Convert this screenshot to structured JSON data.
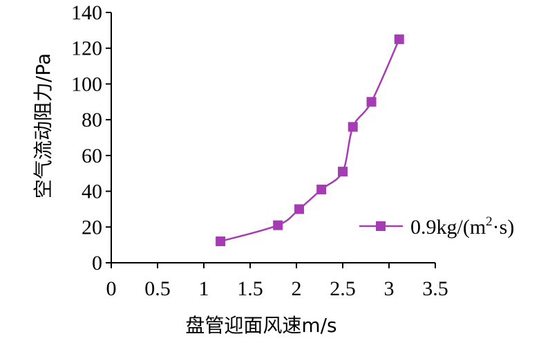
{
  "chart_data": {
    "type": "line",
    "title": "",
    "xlabel": "盘管迎面风速m/s",
    "ylabel": "空气流动阻力/Pa",
    "xlim": [
      0,
      3.5
    ],
    "ylim": [
      0,
      140
    ],
    "xticks": [
      "0",
      "0.5",
      "1",
      "1.5",
      "2",
      "2.5",
      "3",
      "3.5"
    ],
    "yticks": [
      "0",
      "20",
      "40",
      "60",
      "80",
      "100",
      "120",
      "140"
    ],
    "grid": false,
    "legend_position": "right",
    "color": "#A53CB4",
    "series": [
      {
        "name_main": "0.9kg/(m",
        "name_sup": "2",
        "name_tail": "·s)",
        "points": [
          [
            1.18,
            12
          ],
          [
            1.8,
            21
          ],
          [
            2.03,
            30
          ],
          [
            2.27,
            41
          ],
          [
            2.5,
            51
          ],
          [
            2.61,
            76
          ],
          [
            2.81,
            90
          ],
          [
            3.11,
            125
          ]
        ]
      }
    ]
  }
}
